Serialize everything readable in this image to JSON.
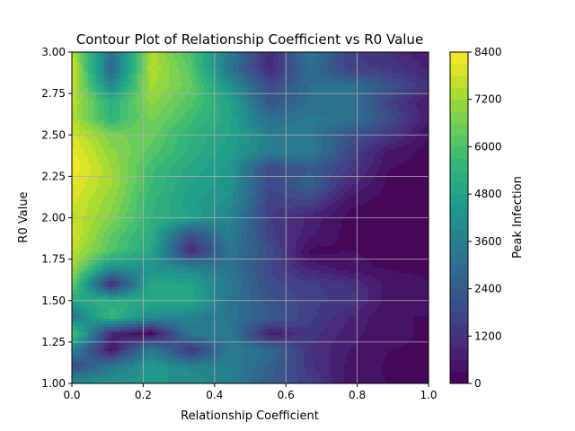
{
  "chart_data": {
    "type": "heatmap",
    "subtype": "filled-contour",
    "title": "Contour Plot of Relationship Coefficient vs R0 Value",
    "xlabel": "Relationship Coefficient",
    "ylabel": "R0 Value",
    "xlim": [
      0.0,
      1.0
    ],
    "ylim": [
      1.0,
      3.0
    ],
    "x_ticks": [
      "0.0",
      "0.2",
      "0.4",
      "0.6",
      "0.8",
      "1.0"
    ],
    "y_ticks": [
      "1.00",
      "1.25",
      "1.50",
      "1.75",
      "2.00",
      "2.25",
      "2.50",
      "2.75",
      "3.00"
    ],
    "grid": true,
    "colormap": "viridis",
    "colorbar": {
      "label": "Peak Infection",
      "range": [
        0,
        8400
      ],
      "ticks": [
        "0",
        "1200",
        "2400",
        "3600",
        "4800",
        "6000",
        "7200",
        "8400"
      ],
      "levels": 28
    },
    "x": [
      0.0,
      0.111,
      0.222,
      0.333,
      0.444,
      0.556,
      0.667,
      0.778,
      0.889,
      1.0
    ],
    "y": [
      1.0,
      1.1,
      1.2,
      1.3,
      1.4,
      1.5,
      1.6,
      1.7,
      1.8,
      1.9,
      2.0,
      2.1,
      2.2,
      2.3,
      2.4,
      2.5,
      2.6,
      2.7,
      2.8,
      2.9,
      3.0
    ],
    "z": [
      [
        4300,
        4400,
        4200,
        4200,
        3600,
        2400,
        1600,
        400,
        300,
        200
      ],
      [
        1800,
        3400,
        4500,
        3800,
        3600,
        2600,
        1300,
        500,
        250,
        200
      ],
      [
        3800,
        500,
        3600,
        1200,
        3500,
        2900,
        1200,
        600,
        300,
        250
      ],
      [
        6200,
        900,
        200,
        3400,
        3400,
        700,
        1400,
        700,
        400,
        250
      ],
      [
        3200,
        5600,
        4000,
        3800,
        3200,
        2400,
        1600,
        900,
        300,
        300
      ],
      [
        5000,
        5300,
        5000,
        5000,
        3200,
        2200,
        1600,
        1400,
        400,
        300
      ],
      [
        6500,
        900,
        5000,
        4800,
        3400,
        1900,
        1600,
        1200,
        500,
        300
      ],
      [
        7200,
        4200,
        4200,
        3800,
        3200,
        1800,
        800,
        400,
        250,
        250
      ],
      [
        7600,
        6100,
        5000,
        900,
        3300,
        2000,
        200,
        300,
        200,
        200
      ],
      [
        7900,
        6300,
        5200,
        2000,
        3600,
        1600,
        700,
        150,
        200,
        150
      ],
      [
        7800,
        6800,
        5400,
        4800,
        3800,
        1500,
        800,
        200,
        150,
        150
      ],
      [
        7900,
        7000,
        5500,
        4600,
        4100,
        1600,
        1800,
        400,
        200,
        150
      ],
      [
        8100,
        7200,
        5700,
        4800,
        4300,
        1800,
        2600,
        1000,
        200,
        150
      ],
      [
        8400,
        7200,
        5800,
        5000,
        4400,
        1800,
        2400,
        1500,
        300,
        200
      ],
      [
        8200,
        7000,
        6200,
        5300,
        4600,
        3600,
        3600,
        1800,
        500,
        200
      ],
      [
        7900,
        6700,
        6400,
        5400,
        4800,
        3600,
        3400,
        2200,
        1400,
        300
      ],
      [
        7500,
        5400,
        6700,
        5800,
        4900,
        3000,
        3400,
        3200,
        2000,
        600
      ],
      [
        7600,
        5300,
        7000,
        6100,
        4800,
        2200,
        3000,
        3200,
        1600,
        600
      ],
      [
        7700,
        3800,
        7300,
        6400,
        4200,
        1800,
        3000,
        3100,
        2200,
        1200
      ],
      [
        7800,
        2800,
        7500,
        6200,
        3200,
        1000,
        3000,
        1600,
        1400,
        800
      ],
      [
        7600,
        3100,
        7400,
        6000,
        3400,
        1000,
        3400,
        1600,
        1200,
        600
      ]
    ]
  }
}
